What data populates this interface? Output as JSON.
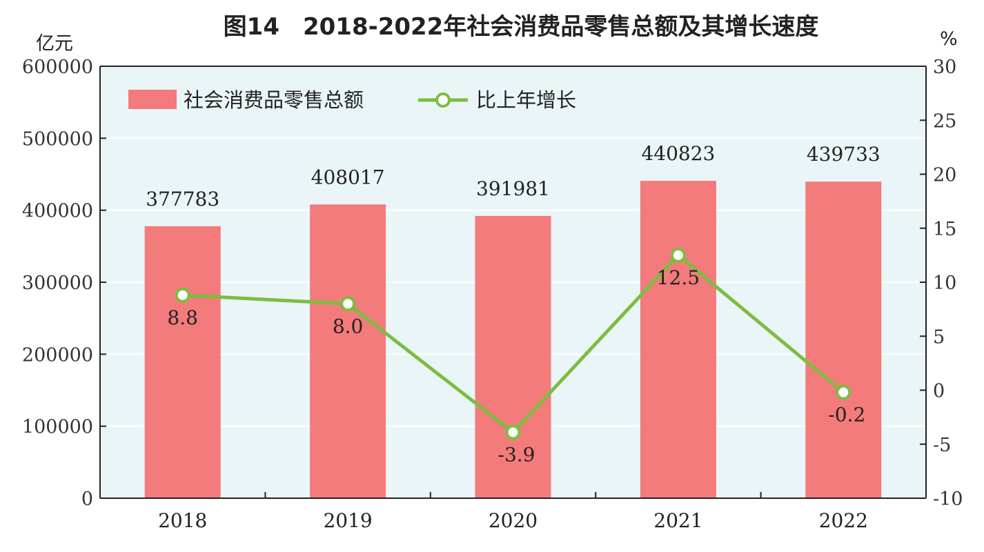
{
  "chart_data": {
    "type": "bar",
    "title": "图14　2018-2022年社会消费品零售总额及其增长速度",
    "y_unit_left": "亿元",
    "y_unit_right": "%",
    "categories": [
      "2018",
      "2019",
      "2020",
      "2021",
      "2022"
    ],
    "series": [
      {
        "name": "社会消费品零售总额",
        "type": "bar",
        "axis": "left",
        "color": "#f37b7b",
        "values": [
          377783,
          408017,
          391981,
          440823,
          439733
        ],
        "labels": [
          "377783",
          "408017",
          "391981",
          "440823",
          "439733"
        ]
      },
      {
        "name": "比上年增长",
        "type": "line",
        "axis": "right",
        "color": "#7cbd3f",
        "values": [
          8.8,
          8.0,
          -3.9,
          12.5,
          -0.2
        ],
        "labels": [
          "8.8",
          "8.0",
          "-3.9",
          "12.5",
          "-0.2"
        ]
      }
    ],
    "ylim_left": [
      0,
      600000
    ],
    "ylim_right": [
      -10,
      30
    ],
    "yticks_left": [
      "0",
      "100000",
      "200000",
      "300000",
      "400000",
      "500000",
      "600000"
    ],
    "yticks_right": [
      "-10",
      "-5",
      "0",
      "5",
      "10",
      "15",
      "20",
      "25",
      "30"
    ],
    "grid": true,
    "legend_position": "top-left",
    "colors": {
      "plot_bg": "#eaf5f8",
      "grid": "#ffffff",
      "axis": "#222222"
    }
  }
}
